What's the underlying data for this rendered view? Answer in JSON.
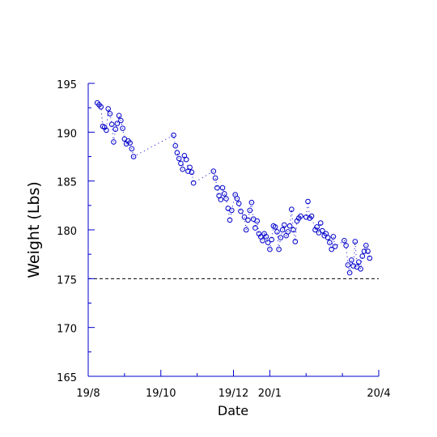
{
  "chart_data": {
    "type": "scatter",
    "xlabel": "Date",
    "ylabel": "Weight (Lbs)",
    "x_ticks": [
      "19/8",
      "19/10",
      "19/12",
      "20/1",
      "20/4"
    ],
    "y_ticks": [
      165,
      170,
      175,
      180,
      185,
      190,
      195
    ],
    "ylim": [
      165,
      195
    ],
    "grid": false,
    "reference_line": {
      "y": 175,
      "style": "dashed"
    },
    "marker": "circle",
    "marker_color": "#0000cc",
    "connector_style": "dotted",
    "series": [
      {
        "values": [
          [
            0.25,
            193.0
          ],
          [
            0.3,
            192.8
          ],
          [
            0.35,
            192.6
          ],
          [
            0.4,
            190.6
          ],
          [
            0.45,
            190.5
          ],
          [
            0.5,
            190.2
          ],
          [
            0.55,
            192.4
          ],
          [
            0.6,
            191.9
          ],
          [
            0.65,
            190.8
          ],
          [
            0.7,
            189.0
          ],
          [
            0.75,
            190.3
          ],
          [
            0.8,
            190.9
          ],
          [
            0.85,
            191.7
          ],
          [
            0.9,
            191.2
          ],
          [
            0.95,
            190.4
          ],
          [
            1.0,
            189.3
          ],
          [
            1.05,
            188.8
          ],
          [
            1.1,
            189.1
          ],
          [
            1.15,
            188.9
          ],
          [
            1.2,
            188.3
          ],
          [
            1.25,
            187.5
          ],
          [
            2.35,
            189.7
          ],
          [
            2.4,
            188.6
          ],
          [
            2.45,
            187.9
          ],
          [
            2.5,
            187.3
          ],
          [
            2.55,
            186.8
          ],
          [
            2.6,
            186.2
          ],
          [
            2.65,
            187.6
          ],
          [
            2.7,
            187.2
          ],
          [
            2.75,
            186.0
          ],
          [
            2.8,
            186.4
          ],
          [
            2.85,
            185.9
          ],
          [
            2.9,
            184.8
          ],
          [
            3.45,
            186.0
          ],
          [
            3.5,
            185.3
          ],
          [
            3.55,
            184.3
          ],
          [
            3.6,
            183.5
          ],
          [
            3.65,
            183.1
          ],
          [
            3.7,
            184.3
          ],
          [
            3.75,
            183.7
          ],
          [
            3.8,
            183.2
          ],
          [
            3.85,
            182.2
          ],
          [
            3.9,
            181.0
          ],
          [
            3.95,
            182.0
          ],
          [
            4.05,
            183.6
          ],
          [
            4.1,
            183.2
          ],
          [
            4.15,
            182.7
          ],
          [
            4.2,
            181.9
          ],
          [
            4.3,
            181.3
          ],
          [
            4.35,
            180.0
          ],
          [
            4.4,
            181.0
          ],
          [
            4.45,
            182.0
          ],
          [
            4.5,
            182.8
          ],
          [
            4.55,
            181.1
          ],
          [
            4.6,
            180.2
          ],
          [
            4.65,
            180.9
          ],
          [
            4.7,
            179.6
          ],
          [
            4.75,
            179.3
          ],
          [
            4.8,
            178.9
          ],
          [
            4.85,
            179.6
          ],
          [
            4.9,
            179.3
          ],
          [
            4.95,
            178.7
          ],
          [
            5.0,
            178.0
          ],
          [
            5.05,
            179.0
          ],
          [
            5.1,
            180.4
          ],
          [
            5.15,
            180.3
          ],
          [
            5.2,
            179.8
          ],
          [
            5.25,
            178.0
          ],
          [
            5.3,
            179.2
          ],
          [
            5.35,
            180.0
          ],
          [
            5.4,
            180.5
          ],
          [
            5.45,
            179.4
          ],
          [
            5.5,
            179.8
          ],
          [
            5.55,
            180.4
          ],
          [
            5.6,
            182.1
          ],
          [
            5.65,
            180.0
          ],
          [
            5.7,
            178.8
          ],
          [
            5.75,
            180.9
          ],
          [
            5.8,
            181.2
          ],
          [
            5.85,
            181.4
          ],
          [
            6.0,
            181.3
          ],
          [
            6.05,
            182.9
          ],
          [
            6.1,
            181.2
          ],
          [
            6.15,
            181.4
          ],
          [
            6.25,
            180.0
          ],
          [
            6.3,
            180.3
          ],
          [
            6.35,
            179.7
          ],
          [
            6.4,
            180.7
          ],
          [
            6.45,
            179.9
          ],
          [
            6.5,
            179.4
          ],
          [
            6.55,
            179.6
          ],
          [
            6.6,
            179.2
          ],
          [
            6.65,
            178.7
          ],
          [
            6.7,
            178.0
          ],
          [
            6.75,
            179.3
          ],
          [
            6.8,
            178.3
          ],
          [
            7.05,
            178.9
          ],
          [
            7.1,
            178.4
          ],
          [
            7.15,
            176.4
          ],
          [
            7.2,
            175.6
          ],
          [
            7.25,
            176.9
          ],
          [
            7.3,
            176.3
          ],
          [
            7.35,
            178.8
          ],
          [
            7.4,
            176.2
          ],
          [
            7.45,
            176.7
          ],
          [
            7.5,
            176.0
          ],
          [
            7.55,
            177.3
          ],
          [
            7.6,
            177.8
          ],
          [
            7.65,
            178.4
          ],
          [
            7.7,
            177.8
          ],
          [
            7.75,
            177.1
          ]
        ]
      }
    ]
  }
}
